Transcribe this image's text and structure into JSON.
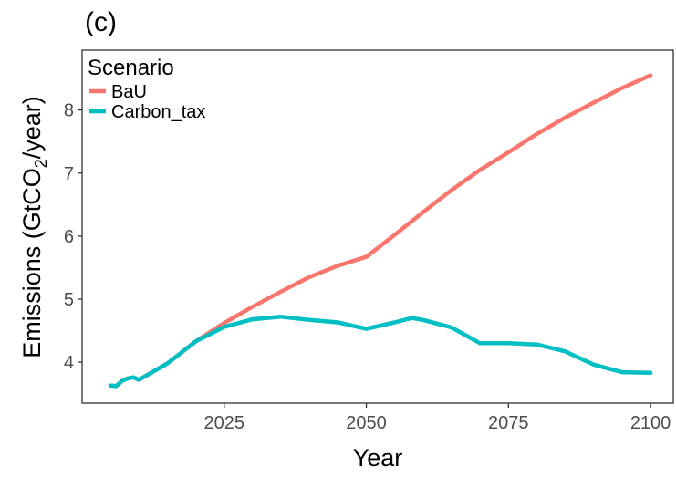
{
  "panel_label": "(c)",
  "chart_data": {
    "type": "line",
    "title": "",
    "xlabel": "Year",
    "ylabel": "Emissions (GtCO₂/year)",
    "ylabel_parts": {
      "prefix": "Emissions (GtCO",
      "subscript": "2",
      "suffix": "/year)"
    },
    "xlim": [
      2000,
      2104
    ],
    "ylim": [
      3.35,
      8.95
    ],
    "xticks": [
      2025,
      2050,
      2075,
      2100
    ],
    "xtick_labels": [
      "2025",
      "2050",
      "2075",
      "2100"
    ],
    "yticks": [
      4,
      5,
      6,
      7,
      8
    ],
    "ytick_labels": [
      "4",
      "5",
      "6",
      "7",
      "8"
    ],
    "grid": false,
    "legend_title": "Scenario",
    "legend_position": "top-left",
    "series": [
      {
        "name": "BaU",
        "color": "#F8766D",
        "x": [
          2005,
          2006,
          2007,
          2008,
          2009,
          2010,
          2015,
          2020,
          2025,
          2030,
          2035,
          2040,
          2045,
          2050,
          2055,
          2060,
          2065,
          2070,
          2075,
          2080,
          2085,
          2090,
          2095,
          2100
        ],
        "y": [
          3.63,
          3.62,
          3.7,
          3.74,
          3.76,
          3.72,
          3.98,
          4.33,
          4.62,
          4.88,
          5.12,
          5.35,
          5.53,
          5.67,
          6.02,
          6.38,
          6.73,
          7.05,
          7.33,
          7.62,
          7.88,
          8.12,
          8.35,
          8.55
        ]
      },
      {
        "name": "Carbon_tax",
        "color": "#00BFC4",
        "x": [
          2005,
          2006,
          2007,
          2008,
          2009,
          2010,
          2015,
          2020,
          2025,
          2030,
          2035,
          2040,
          2045,
          2050,
          2055,
          2058,
          2060,
          2065,
          2070,
          2075,
          2080,
          2085,
          2090,
          2095,
          2100
        ],
        "y": [
          3.63,
          3.62,
          3.7,
          3.74,
          3.76,
          3.72,
          3.98,
          4.33,
          4.56,
          4.68,
          4.72,
          4.67,
          4.63,
          4.53,
          4.63,
          4.7,
          4.67,
          4.55,
          4.3,
          4.3,
          4.28,
          4.17,
          3.96,
          3.84,
          3.83
        ]
      }
    ]
  }
}
